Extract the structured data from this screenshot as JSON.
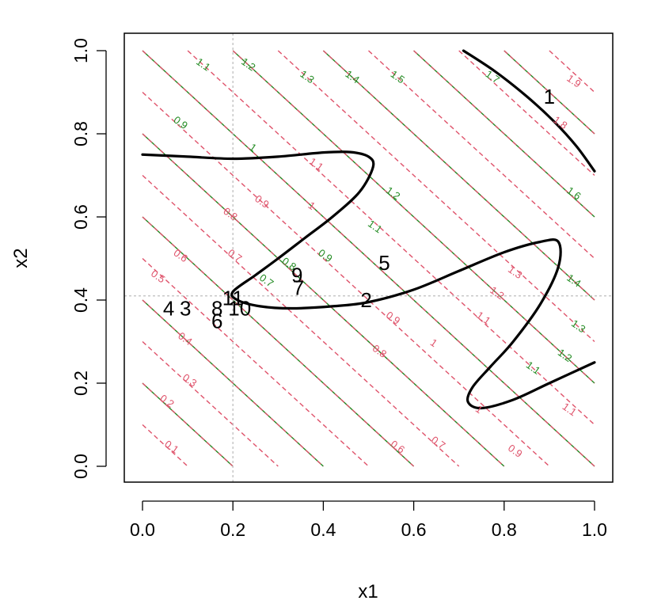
{
  "chart_data": {
    "type": "contour",
    "title": "",
    "xlabel": "x1",
    "ylabel": "x2",
    "xlim": [
      0,
      1
    ],
    "ylim": [
      0,
      1
    ],
    "x_ticks": [
      "0.0",
      "0.2",
      "0.4",
      "0.6",
      "0.8",
      "1.0"
    ],
    "y_ticks": [
      "0.0",
      "0.2",
      "0.4",
      "0.6",
      "0.8",
      "1.0"
    ],
    "reference_lines": {
      "x": 0.2,
      "y": 0.41
    },
    "colors": {
      "green": "#228B22",
      "red": "#DF536B",
      "curve": "#000000",
      "refline": "#BEBEBE"
    },
    "contour_sets": [
      {
        "name": "green-solid",
        "color": "#228B22",
        "style": "solid",
        "lines": [
          {
            "level": 0.6,
            "label": ""
          },
          {
            "level": 0.7,
            "label": "0.7"
          },
          {
            "level": 0.8,
            "label": ""
          },
          {
            "level": 0.9,
            "label": "0.9"
          },
          {
            "level": 1.0,
            "label": "1"
          },
          {
            "level": 1.1,
            "label": "1.1"
          },
          {
            "level": 1.2,
            "label": "1.2"
          },
          {
            "level": 1.3,
            "label": "1.3"
          },
          {
            "level": 1.4,
            "label": "1.4"
          },
          {
            "level": 1.5,
            "label": "1.5"
          },
          {
            "level": 1.6,
            "label": "1.6"
          },
          {
            "level": 1.7,
            "label": "1.7"
          }
        ],
        "labels": [
          {
            "text": "1.1",
            "x": 0.13,
            "y": 0.96
          },
          {
            "text": "1.2",
            "x": 0.23,
            "y": 0.96
          },
          {
            "text": "1.3",
            "x": 0.36,
            "y": 0.93
          },
          {
            "text": "1.4",
            "x": 0.46,
            "y": 0.93
          },
          {
            "text": "1.5",
            "x": 0.56,
            "y": 0.93
          },
          {
            "text": "1.7",
            "x": 0.77,
            "y": 0.93
          },
          {
            "text": "0.9",
            "x": 0.08,
            "y": 0.82
          },
          {
            "text": "1",
            "x": 0.24,
            "y": 0.76
          },
          {
            "text": "1.2",
            "x": 0.55,
            "y": 0.65
          },
          {
            "text": "1.1",
            "x": 0.51,
            "y": 0.57
          },
          {
            "text": "0.9",
            "x": 0.4,
            "y": 0.5
          },
          {
            "text": "0.8",
            "x": 0.32,
            "y": 0.48
          },
          {
            "text": "0.7",
            "x": 0.27,
            "y": 0.44
          },
          {
            "text": "1.6",
            "x": 0.95,
            "y": 0.65
          },
          {
            "text": "1.4",
            "x": 0.95,
            "y": 0.44
          },
          {
            "text": "1.3",
            "x": 0.96,
            "y": 0.33
          },
          {
            "text": "1.2",
            "x": 0.93,
            "y": 0.26
          },
          {
            "text": "1.1",
            "x": 0.86,
            "y": 0.23
          }
        ]
      },
      {
        "name": "red-dashed",
        "color": "#DF536B",
        "style": "dashed",
        "lines": [
          {
            "level": 0.1,
            "label": "0.1"
          },
          {
            "level": 0.2,
            "label": "0.2"
          },
          {
            "level": 0.3,
            "label": "0.3"
          },
          {
            "level": 0.4,
            "label": "0.4"
          },
          {
            "level": 0.5,
            "label": "0.5"
          },
          {
            "level": 0.6,
            "label": "0.6"
          },
          {
            "level": 0.7,
            "label": "0.7"
          },
          {
            "level": 0.8,
            "label": "0.8"
          },
          {
            "level": 0.9,
            "label": "0.9"
          },
          {
            "level": 1.0,
            "label": "1"
          },
          {
            "level": 1.1,
            "label": "1.1"
          },
          {
            "level": 1.2,
            "label": "1.2"
          },
          {
            "level": 1.3,
            "label": "1.3"
          },
          {
            "level": 1.4,
            "label": ""
          },
          {
            "level": 1.5,
            "label": ""
          },
          {
            "level": 1.6,
            "label": ""
          },
          {
            "level": 1.7,
            "label": ""
          },
          {
            "level": 1.8,
            "label": "1.8"
          },
          {
            "level": 1.9,
            "label": "1.9"
          }
        ],
        "labels": [
          {
            "text": "0.1",
            "x": 0.06,
            "y": 0.04
          },
          {
            "text": "0.2",
            "x": 0.05,
            "y": 0.15
          },
          {
            "text": "0.3",
            "x": 0.1,
            "y": 0.2
          },
          {
            "text": "0.4",
            "x": 0.09,
            "y": 0.3
          },
          {
            "text": "0.5",
            "x": 0.03,
            "y": 0.45
          },
          {
            "text": "0.6",
            "x": 0.08,
            "y": 0.5
          },
          {
            "text": "0.7",
            "x": 0.2,
            "y": 0.5
          },
          {
            "text": "0.8",
            "x": 0.19,
            "y": 0.6
          },
          {
            "text": "0.9",
            "x": 0.26,
            "y": 0.63
          },
          {
            "text": "1",
            "x": 0.37,
            "y": 0.62
          },
          {
            "text": "1.1",
            "x": 0.38,
            "y": 0.72
          },
          {
            "text": "0.9",
            "x": 0.55,
            "y": 0.35
          },
          {
            "text": "0.8",
            "x": 0.52,
            "y": 0.27
          },
          {
            "text": "0.6",
            "x": 0.56,
            "y": 0.04
          },
          {
            "text": "0.7",
            "x": 0.65,
            "y": 0.05
          },
          {
            "text": "0.9",
            "x": 0.82,
            "y": 0.03
          },
          {
            "text": "1",
            "x": 0.74,
            "y": 0.13
          },
          {
            "text": "1",
            "x": 0.64,
            "y": 0.29
          },
          {
            "text": "1.1",
            "x": 0.75,
            "y": 0.35
          },
          {
            "text": "1.2",
            "x": 0.78,
            "y": 0.41
          },
          {
            "text": "1.3",
            "x": 0.82,
            "y": 0.46
          },
          {
            "text": "1.1",
            "x": 0.94,
            "y": 0.13
          },
          {
            "text": "1.8",
            "x": 0.92,
            "y": 0.82
          },
          {
            "text": "1.9",
            "x": 0.95,
            "y": 0.92
          }
        ]
      }
    ],
    "curve": [
      [
        0.0,
        0.75
      ],
      [
        0.1,
        0.745
      ],
      [
        0.2,
        0.74
      ],
      [
        0.3,
        0.745
      ],
      [
        0.4,
        0.755
      ],
      [
        0.46,
        0.756
      ],
      [
        0.5,
        0.745
      ],
      [
        0.51,
        0.72
      ],
      [
        0.48,
        0.66
      ],
      [
        0.42,
        0.6
      ],
      [
        0.36,
        0.55
      ],
      [
        0.3,
        0.5
      ],
      [
        0.25,
        0.46
      ],
      [
        0.2,
        0.42
      ],
      [
        0.21,
        0.4
      ],
      [
        0.26,
        0.385
      ],
      [
        0.33,
        0.38
      ],
      [
        0.42,
        0.385
      ],
      [
        0.5,
        0.395
      ],
      [
        0.6,
        0.425
      ],
      [
        0.7,
        0.47
      ],
      [
        0.8,
        0.515
      ],
      [
        0.88,
        0.54
      ],
      [
        0.92,
        0.54
      ],
      [
        0.92,
        0.48
      ],
      [
        0.88,
        0.39
      ],
      [
        0.82,
        0.3
      ],
      [
        0.77,
        0.24
      ],
      [
        0.73,
        0.19
      ],
      [
        0.72,
        0.155
      ],
      [
        0.75,
        0.14
      ],
      [
        0.82,
        0.16
      ],
      [
        0.9,
        0.2
      ],
      [
        1.0,
        0.25
      ]
    ],
    "curve2": [
      [
        0.71,
        1.0
      ],
      [
        0.78,
        0.95
      ],
      [
        0.85,
        0.89
      ],
      [
        0.91,
        0.83
      ],
      [
        0.96,
        0.77
      ],
      [
        1.0,
        0.71
      ]
    ],
    "points": [
      {
        "label": "1",
        "x": 0.9,
        "y": 0.89
      },
      {
        "label": "2",
        "x": 0.495,
        "y": 0.4
      },
      {
        "label": "3",
        "x": 0.095,
        "y": 0.38
      },
      {
        "label": "4",
        "x": 0.058,
        "y": 0.38
      },
      {
        "label": "5",
        "x": 0.535,
        "y": 0.49
      },
      {
        "label": "6",
        "x": 0.165,
        "y": 0.35
      },
      {
        "label": "7",
        "x": 0.345,
        "y": 0.43
      },
      {
        "label": "8",
        "x": 0.165,
        "y": 0.38
      },
      {
        "label": "9",
        "x": 0.342,
        "y": 0.46
      },
      {
        "label": "10",
        "x": 0.215,
        "y": 0.38
      },
      {
        "label": "11",
        "x": 0.2,
        "y": 0.405
      }
    ]
  }
}
